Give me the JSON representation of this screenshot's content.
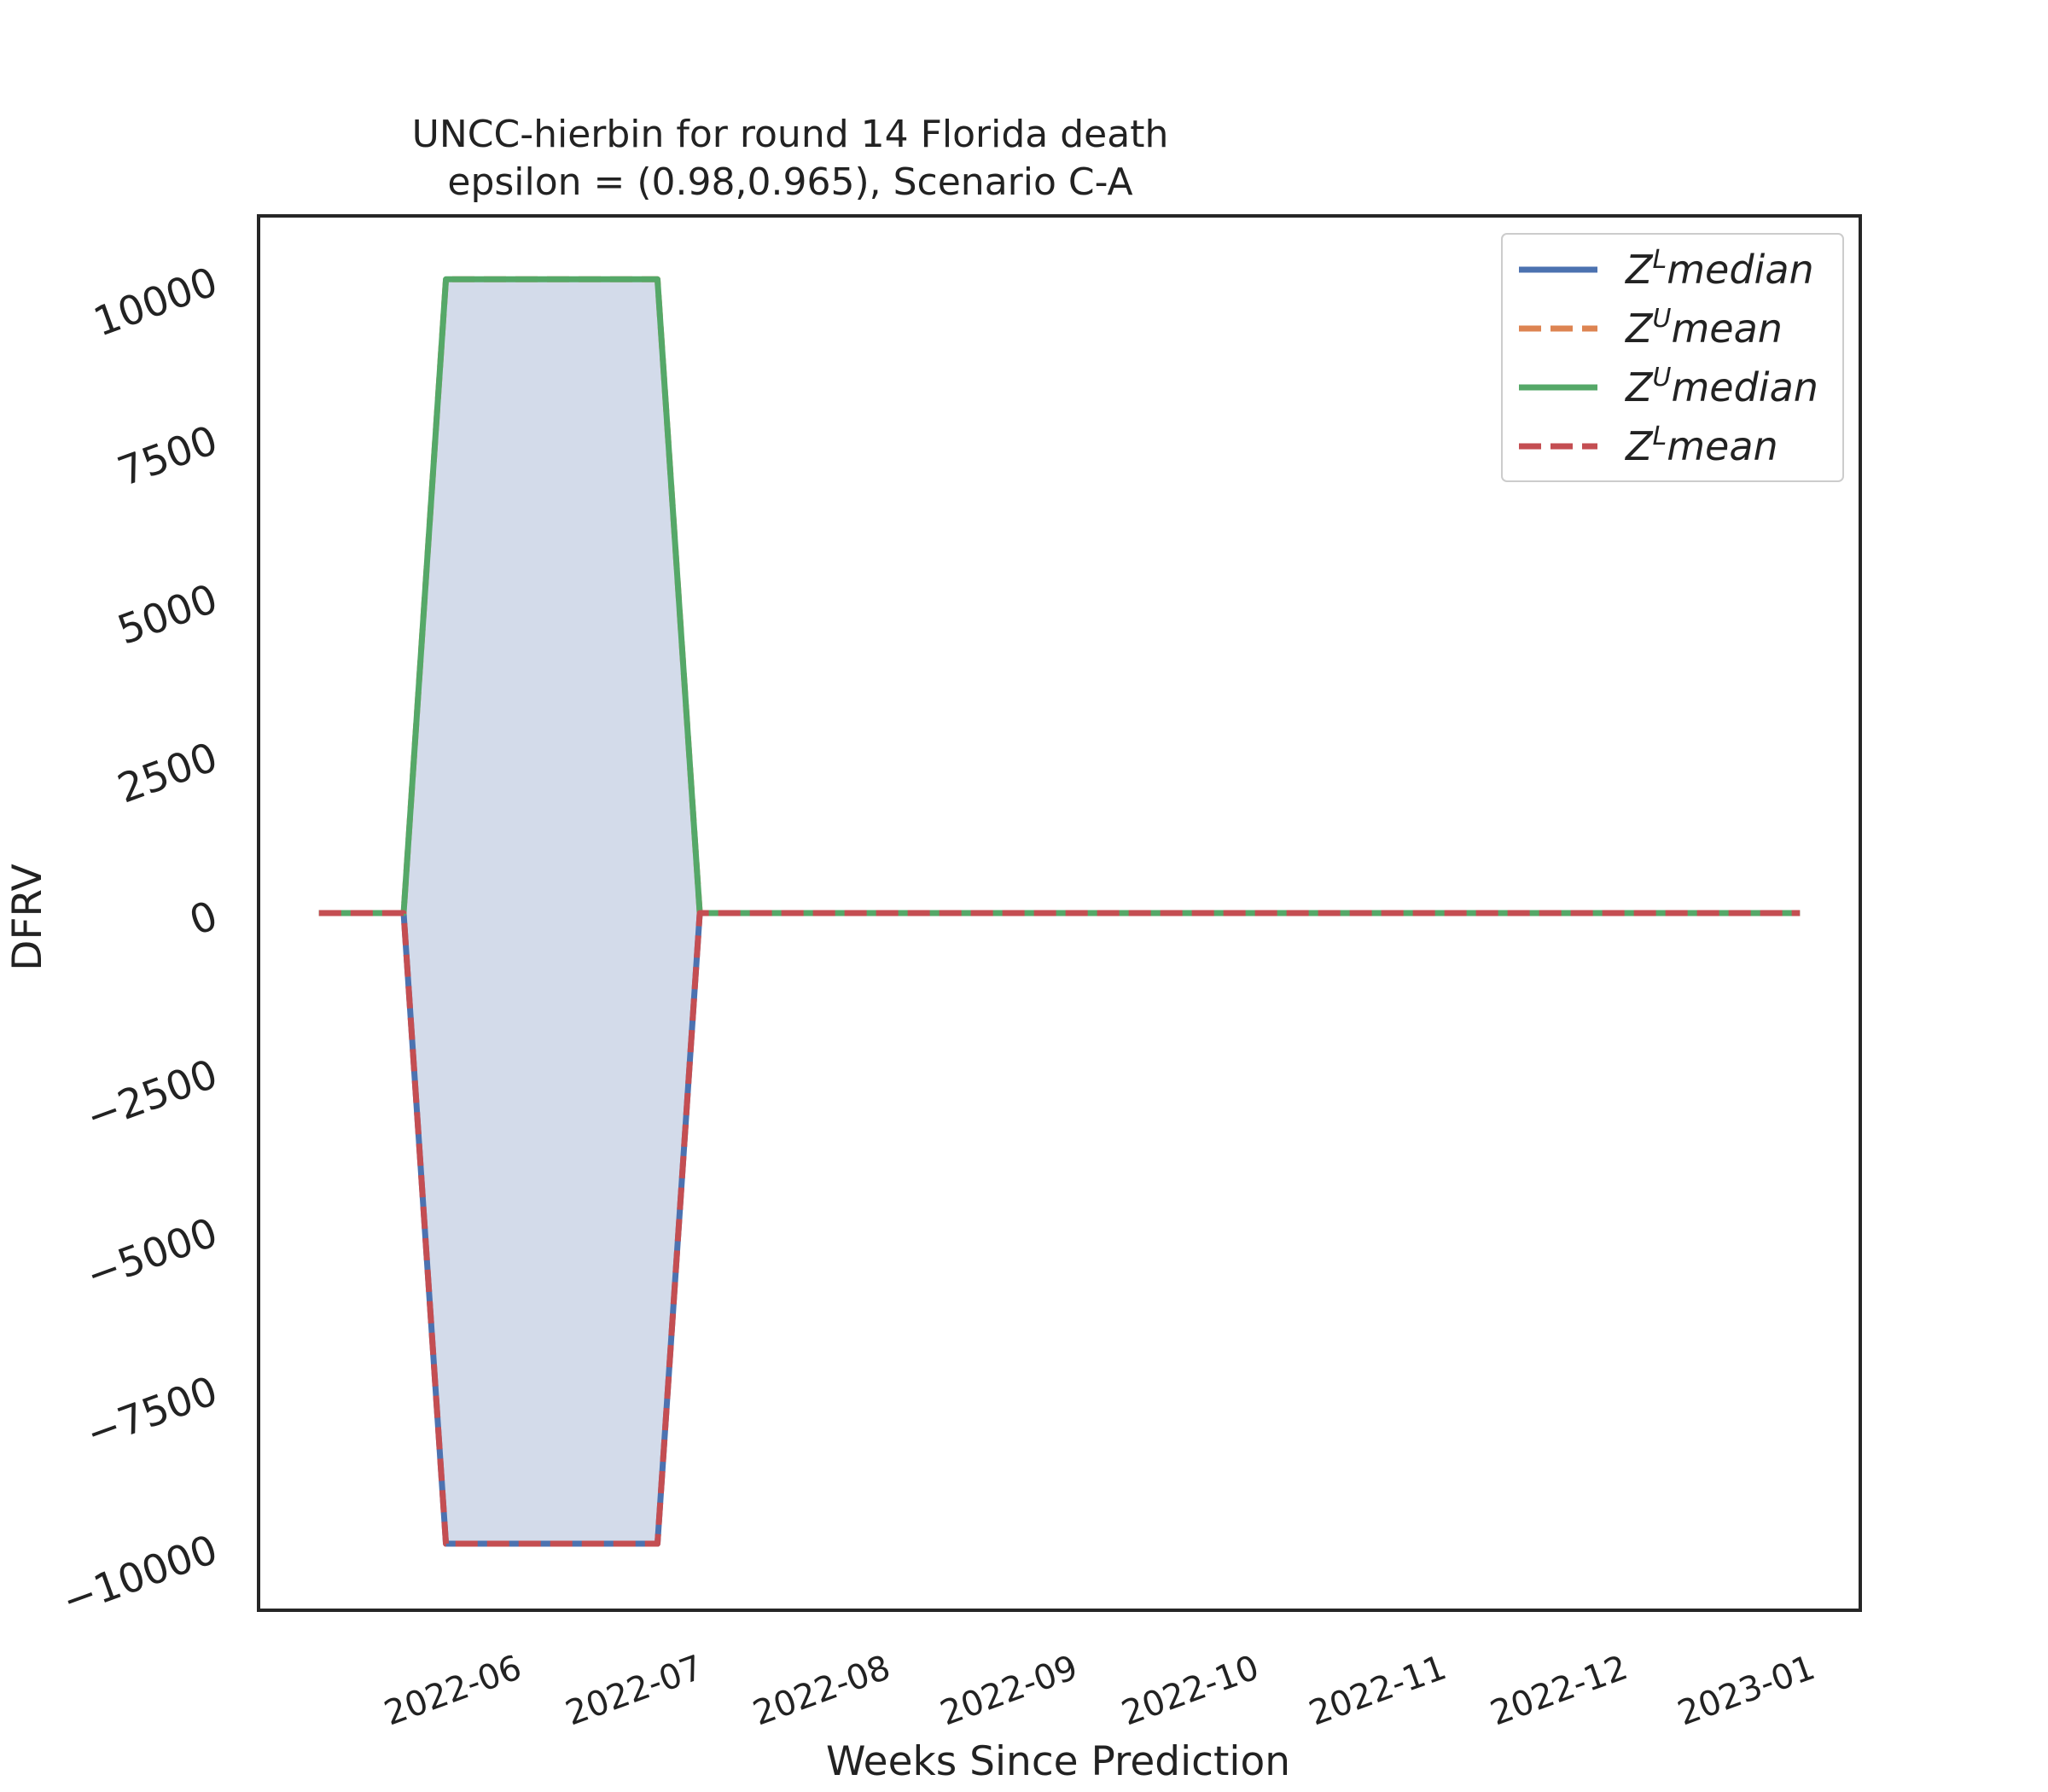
{
  "chart_data": {
    "type": "line",
    "title_line1": "UNCC-hierbin for round 14 Florida  death",
    "title_line2": "epsilon = (0.98,0.965), Scenario C-A",
    "xlabel": "Weeks Since Prediction",
    "ylabel": "DFRV",
    "x_dates": [
      "2022-05-08",
      "2022-05-15",
      "2022-05-22",
      "2022-05-29",
      "2022-06-05",
      "2022-06-12",
      "2022-06-19",
      "2022-06-26",
      "2022-07-03",
      "2022-07-10",
      "2022-07-17",
      "2022-07-24",
      "2022-07-31",
      "2022-08-07",
      "2022-08-14",
      "2022-08-21",
      "2022-08-28",
      "2022-09-04",
      "2022-09-11",
      "2022-09-18",
      "2022-09-25",
      "2022-10-02",
      "2022-10-09",
      "2022-10-16",
      "2022-10-23",
      "2022-10-30",
      "2022-11-06",
      "2022-11-13",
      "2022-11-20",
      "2022-11-27",
      "2022-12-04",
      "2022-12-11",
      "2022-12-18",
      "2022-12-25",
      "2023-01-01",
      "2023-01-08"
    ],
    "x_ticks": [
      "2022-06",
      "2022-07",
      "2022-08",
      "2022-09",
      "2022-10",
      "2022-11",
      "2022-12",
      "2023-01"
    ],
    "x_tick_dates": [
      "2022-06-01",
      "2022-07-01",
      "2022-08-01",
      "2022-09-01",
      "2022-10-01",
      "2022-11-01",
      "2022-12-01",
      "2023-01-01"
    ],
    "x_range": [
      "2022-04-28",
      "2023-01-18"
    ],
    "y_ticks": [
      10000,
      7500,
      5000,
      2500,
      0,
      -2500,
      -5000,
      -7500,
      -10000
    ],
    "y_tick_labels": [
      "10000",
      "7500",
      "5000",
      "2500",
      "0",
      "−2500",
      "−5000",
      "−7500",
      "−10000"
    ],
    "ylim": [
      -11000,
      11000
    ],
    "fill_between": {
      "upper": "Z^U median",
      "lower": "Z^L median",
      "color": "#d3dbea"
    },
    "series": [
      {
        "name": "Z^L median",
        "label_base": "Z",
        "label_sup": "L",
        "label_rest": "median",
        "color": "#4c72b0",
        "dash": "solid",
        "values": [
          0,
          0,
          0,
          -9950,
          -9950,
          -9950,
          -9950,
          -9950,
          -9950,
          0,
          0,
          0,
          0,
          0,
          0,
          0,
          0,
          0,
          0,
          0,
          0,
          0,
          0,
          0,
          0,
          0,
          0,
          0,
          0,
          0,
          0,
          0,
          0,
          0,
          0,
          0
        ]
      },
      {
        "name": "Z^U mean",
        "label_base": "Z",
        "label_sup": "U",
        "label_rest": "mean",
        "color": "#dd8452",
        "dash": "dashed",
        "values": [
          0,
          0,
          0,
          10000,
          10000,
          10000,
          10000,
          10000,
          10000,
          0,
          0,
          0,
          0,
          0,
          0,
          0,
          0,
          0,
          0,
          0,
          0,
          0,
          0,
          0,
          0,
          0,
          0,
          0,
          0,
          0,
          0,
          0,
          0,
          0,
          0,
          0
        ]
      },
      {
        "name": "Z^U median",
        "label_base": "Z",
        "label_sup": "U",
        "label_rest": "median",
        "color": "#55a868",
        "dash": "solid",
        "values": [
          0,
          0,
          0,
          10000,
          10000,
          10000,
          10000,
          10000,
          10000,
          0,
          0,
          0,
          0,
          0,
          0,
          0,
          0,
          0,
          0,
          0,
          0,
          0,
          0,
          0,
          0,
          0,
          0,
          0,
          0,
          0,
          0,
          0,
          0,
          0,
          0,
          0
        ]
      },
      {
        "name": "Z^L mean",
        "label_base": "Z",
        "label_sup": "L",
        "label_rest": "mean",
        "color": "#c44e52",
        "dash": "dashed",
        "values": [
          0,
          0,
          0,
          -9950,
          -9950,
          -9950,
          -9950,
          -9950,
          -9950,
          0,
          0,
          0,
          0,
          0,
          0,
          0,
          0,
          0,
          0,
          0,
          0,
          0,
          0,
          0,
          0,
          0,
          0,
          0,
          0,
          0,
          0,
          0,
          0,
          0,
          0,
          0
        ]
      }
    ],
    "legend_position": "upper right",
    "grid": false
  }
}
